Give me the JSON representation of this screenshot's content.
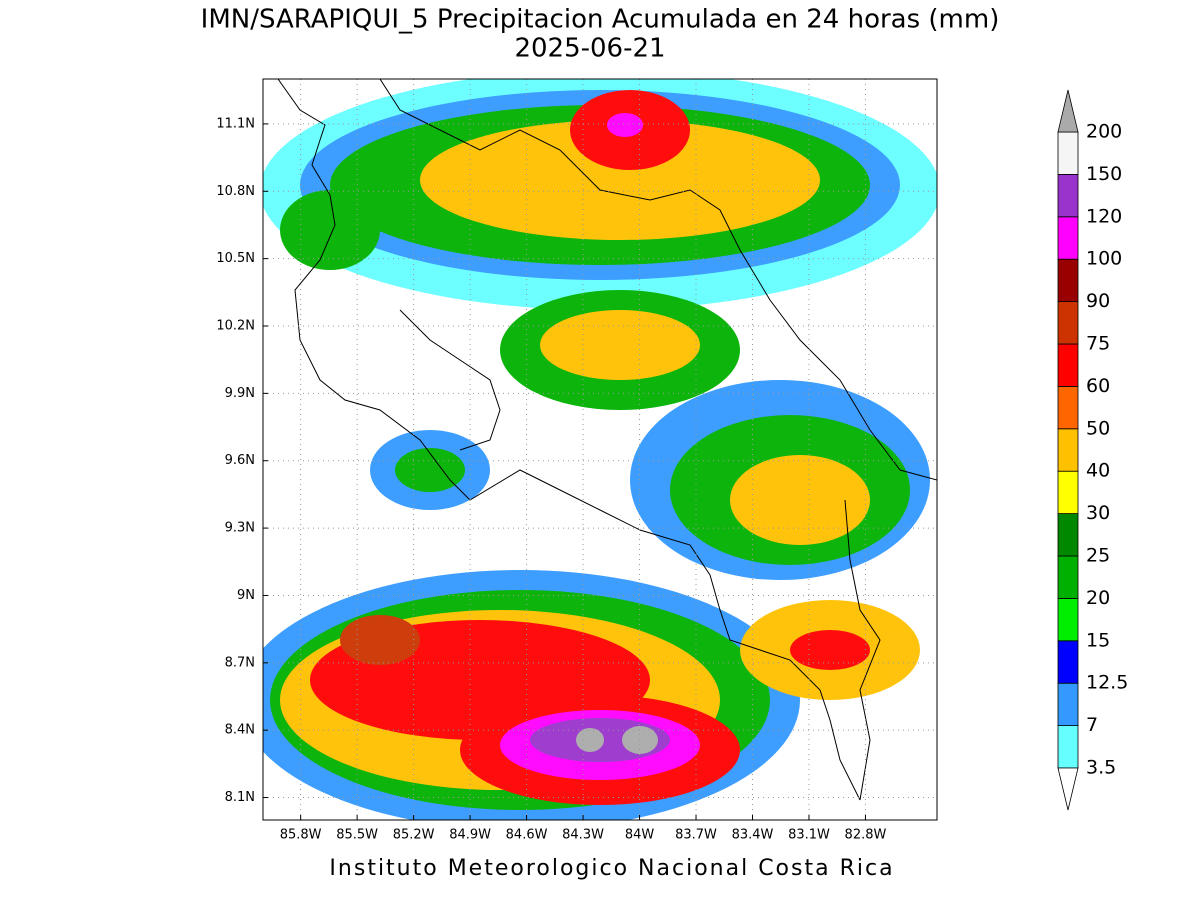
{
  "map": {
    "title": "IMN/SARAPIQUI_5 Precipitacion Acumulada en 24 horas (mm)",
    "subtitle": "2025-06-21",
    "credit": "Instituto Meteorologico Nacional Costa Rica",
    "lon_range": [
      -86.0,
      -82.42
    ],
    "lat_range": [
      8.0,
      11.3
    ],
    "lon_ticks": [
      {
        "value": -85.8,
        "label": "85.8W"
      },
      {
        "value": -85.5,
        "label": "85.5W"
      },
      {
        "value": -85.2,
        "label": "85.2W"
      },
      {
        "value": -84.9,
        "label": "84.9W"
      },
      {
        "value": -84.6,
        "label": "84.6W"
      },
      {
        "value": -84.3,
        "label": "84.3W"
      },
      {
        "value": -84.0,
        "label": "84W"
      },
      {
        "value": -83.7,
        "label": "83.7W"
      },
      {
        "value": -83.4,
        "label": "83.4W"
      },
      {
        "value": -83.1,
        "label": "83.1W"
      },
      {
        "value": -82.8,
        "label": "82.8W"
      }
    ],
    "lat_ticks": [
      {
        "value": 11.1,
        "label": "11.1N"
      },
      {
        "value": 10.8,
        "label": "10.8N"
      },
      {
        "value": 10.5,
        "label": "10.5N"
      },
      {
        "value": 10.2,
        "label": "10.2N"
      },
      {
        "value": 9.9,
        "label": "9.9N"
      },
      {
        "value": 9.6,
        "label": "9.6N"
      },
      {
        "value": 9.3,
        "label": "9.3N"
      },
      {
        "value": 9.0,
        "label": "9N"
      },
      {
        "value": 8.7,
        "label": "8.7N"
      },
      {
        "value": 8.4,
        "label": "8.4N"
      },
      {
        "value": 8.1,
        "label": "8.1N"
      }
    ],
    "grid": true,
    "colorbar": {
      "levels": [
        3.5,
        7,
        12.5,
        15,
        20,
        25,
        30,
        40,
        50,
        60,
        75,
        90,
        100,
        120,
        150,
        200
      ],
      "colors": [
        "#66ffff",
        "#3399ff",
        "#0000ff",
        "#00ee00",
        "#00b000",
        "#008800",
        "#ffff00",
        "#ffc000",
        "#ff6600",
        "#ff0000",
        "#cc3300",
        "#990000",
        "#ff00ff",
        "#9933cc",
        "#f5f5f5"
      ],
      "under_color": "#ffffff",
      "over_color": "#aaaaaa"
    }
  }
}
